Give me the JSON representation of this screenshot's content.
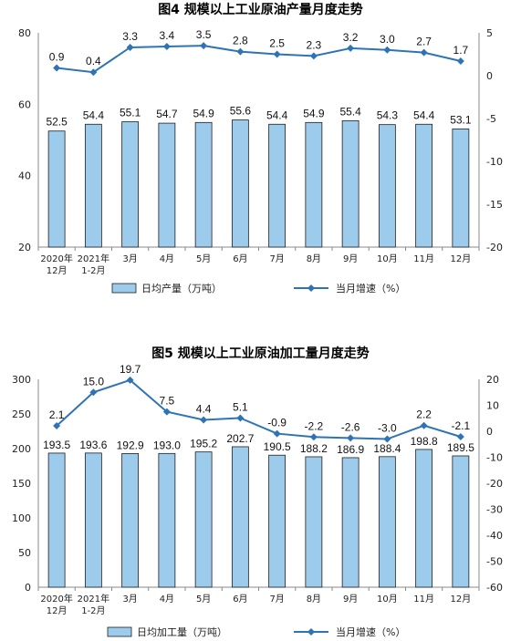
{
  "chart_data": [
    {
      "type": "bar",
      "title": "图4  规模以上工业原油产量月度走势",
      "categories": [
        [
          "2020年",
          "12月"
        ],
        [
          "2021年",
          "1-2月"
        ],
        [
          "3月"
        ],
        [
          "4月"
        ],
        [
          "5月"
        ],
        [
          "6月"
        ],
        [
          "7月"
        ],
        [
          "8月"
        ],
        [
          "9月"
        ],
        [
          "10月"
        ],
        [
          "11月"
        ],
        [
          "12月"
        ]
      ],
      "left_axis": {
        "min": 20,
        "max": 80,
        "step": 20
      },
      "right_axis": {
        "min": -20,
        "max": 5,
        "step": 5
      },
      "series": [
        {
          "name": "日均产量（万吨）",
          "type": "bar",
          "axis": "left",
          "color": "#9CCBEC",
          "values": [
            52.5,
            54.4,
            55.1,
            54.7,
            54.9,
            55.6,
            54.4,
            54.9,
            55.4,
            54.3,
            54.4,
            53.1
          ],
          "labels": [
            "52.5",
            "54.4",
            "55.1",
            "54.7",
            "54.9",
            "55.6",
            "54.4",
            "54.9",
            "55.4",
            "54.3",
            "54.4",
            "53.1"
          ]
        },
        {
          "name": "当月增速（%）",
          "type": "line",
          "axis": "right",
          "color": "#2E74B5",
          "values": [
            0.9,
            0.4,
            3.3,
            3.4,
            3.5,
            2.8,
            2.5,
            2.3,
            3.2,
            3.0,
            2.7,
            1.7
          ],
          "labels": [
            "0.9",
            "0.4",
            "3.3",
            "3.4",
            "3.5",
            "2.8",
            "2.5",
            "2.3",
            "3.2",
            "3.0",
            "2.7",
            "1.7"
          ]
        }
      ]
    },
    {
      "type": "bar",
      "title": "图5  规模以上工业原油加工量月度走势",
      "categories": [
        [
          "2020年",
          "12月"
        ],
        [
          "2021年",
          "1-2月"
        ],
        [
          "3月"
        ],
        [
          "4月"
        ],
        [
          "5月"
        ],
        [
          "6月"
        ],
        [
          "7月"
        ],
        [
          "8月"
        ],
        [
          "9月"
        ],
        [
          "10月"
        ],
        [
          "11月"
        ],
        [
          "12月"
        ]
      ],
      "left_axis": {
        "min": 0,
        "max": 300,
        "step": 50
      },
      "right_axis": {
        "min": -60,
        "max": 20,
        "step": 10
      },
      "series": [
        {
          "name": "日均加工量（万吨）",
          "type": "bar",
          "axis": "left",
          "color": "#9CCBEC",
          "values": [
            193.5,
            193.6,
            192.9,
            193.0,
            195.2,
            202.7,
            190.5,
            188.2,
            186.9,
            188.4,
            198.8,
            189.5
          ],
          "labels": [
            "193.5",
            "193.6",
            "192.9",
            "193.0",
            "195.2",
            "202.7",
            "190.5",
            "188.2",
            "186.9",
            "188.4",
            "198.8",
            "189.5"
          ]
        },
        {
          "name": "当月增速（%）",
          "type": "line",
          "axis": "right",
          "color": "#2E74B5",
          "values": [
            2.1,
            15.0,
            19.7,
            7.5,
            4.4,
            5.1,
            -0.9,
            -2.2,
            -2.6,
            -3.0,
            2.2,
            -2.1
          ],
          "labels": [
            "2.1",
            "15.0",
            "19.7",
            "7.5",
            "4.4",
            "5.1",
            "-0.9",
            "-2.2",
            "-2.6",
            "-3.0",
            "2.2",
            "-2.1"
          ]
        }
      ]
    }
  ]
}
